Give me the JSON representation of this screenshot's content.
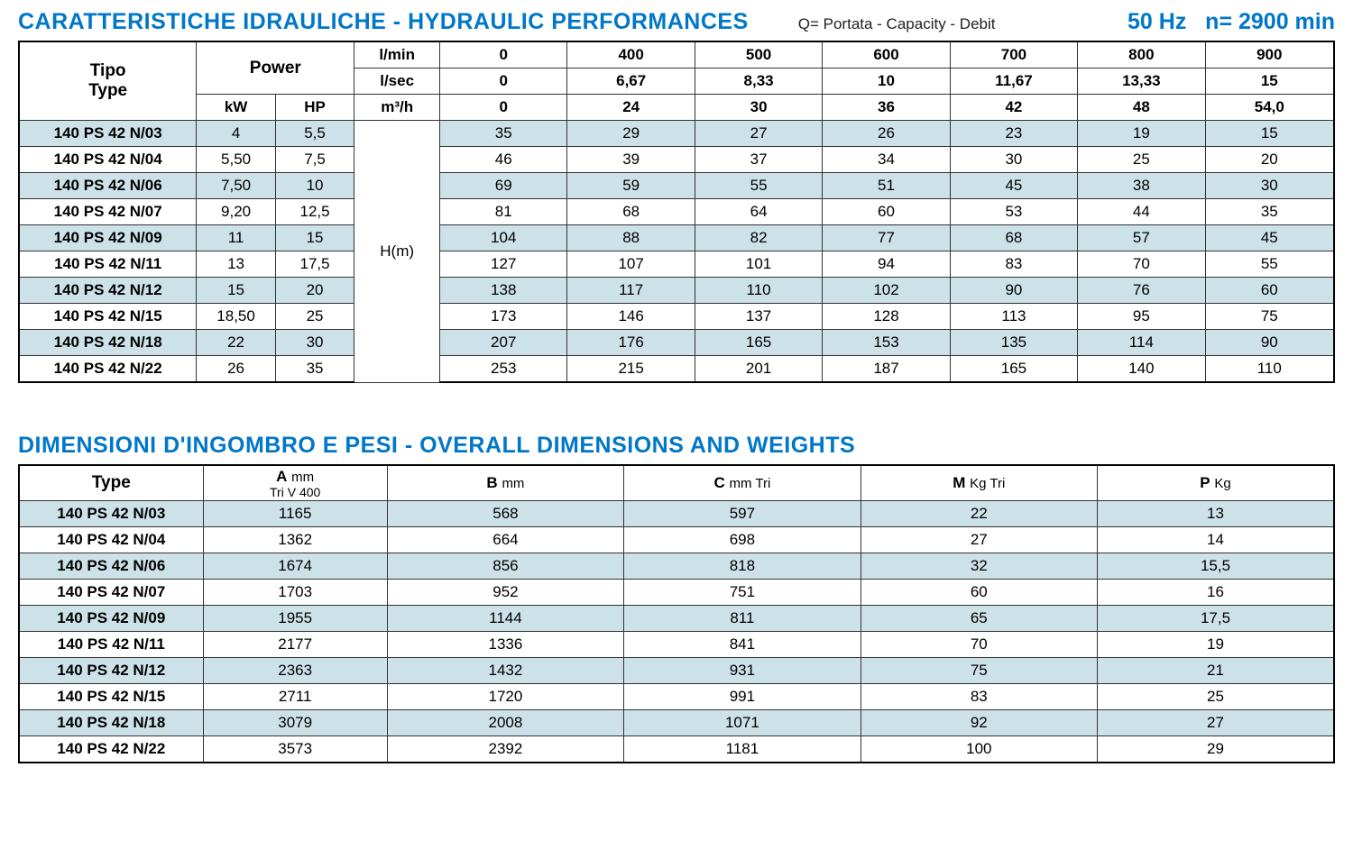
{
  "section1": {
    "title": "CARATTERISTICHE IDRAULICHE - HYDRAULIC PERFORMANCES",
    "q_note": "Q= Portata - Capacity - Debit",
    "freq": "50 Hz",
    "speed": "n= 2900 min",
    "headers": {
      "tipo1": "Tipo",
      "tipo2": "Type",
      "power": "Power",
      "kw": "kW",
      "hp": "HP",
      "lmin": "l/min",
      "lsec": "l/sec",
      "m3h": "m³/h",
      "hm": "H(m)"
    },
    "flow_lmin": [
      "0",
      "400",
      "500",
      "600",
      "700",
      "800",
      "900"
    ],
    "flow_lsec": [
      "0",
      "6,67",
      "8,33",
      "10",
      "11,67",
      "13,33",
      "15"
    ],
    "flow_m3h": [
      "0",
      "24",
      "30",
      "36",
      "42",
      "48",
      "54,0"
    ],
    "rows": [
      {
        "type": "140 PS 42 N/03",
        "kw": "4",
        "hp": "5,5",
        "h": [
          "35",
          "29",
          "27",
          "26",
          "23",
          "19",
          "15"
        ]
      },
      {
        "type": "140 PS 42 N/04",
        "kw": "5,50",
        "hp": "7,5",
        "h": [
          "46",
          "39",
          "37",
          "34",
          "30",
          "25",
          "20"
        ]
      },
      {
        "type": "140 PS 42 N/06",
        "kw": "7,50",
        "hp": "10",
        "h": [
          "69",
          "59",
          "55",
          "51",
          "45",
          "38",
          "30"
        ]
      },
      {
        "type": "140 PS 42 N/07",
        "kw": "9,20",
        "hp": "12,5",
        "h": [
          "81",
          "68",
          "64",
          "60",
          "53",
          "44",
          "35"
        ]
      },
      {
        "type": "140 PS 42 N/09",
        "kw": "11",
        "hp": "15",
        "h": [
          "104",
          "88",
          "82",
          "77",
          "68",
          "57",
          "45"
        ]
      },
      {
        "type": "140 PS 42 N/11",
        "kw": "13",
        "hp": "17,5",
        "h": [
          "127",
          "107",
          "101",
          "94",
          "83",
          "70",
          "55"
        ]
      },
      {
        "type": "140 PS 42 N/12",
        "kw": "15",
        "hp": "20",
        "h": [
          "138",
          "117",
          "110",
          "102",
          "90",
          "76",
          "60"
        ]
      },
      {
        "type": "140 PS 42 N/15",
        "kw": "18,50",
        "hp": "25",
        "h": [
          "173",
          "146",
          "137",
          "128",
          "113",
          "95",
          "75"
        ]
      },
      {
        "type": "140 PS 42 N/18",
        "kw": "22",
        "hp": "30",
        "h": [
          "207",
          "176",
          "165",
          "153",
          "135",
          "114",
          "90"
        ]
      },
      {
        "type": "140 PS 42 N/22",
        "kw": "26",
        "hp": "35",
        "h": [
          "253",
          "215",
          "201",
          "187",
          "165",
          "140",
          "110"
        ]
      }
    ],
    "col_widths_pct": [
      13.5,
      6,
      6,
      6.5,
      9.7,
      9.7,
      9.7,
      9.7,
      9.7,
      9.7,
      9.8
    ]
  },
  "section2": {
    "title": "DIMENSIONI D'INGOMBRO E PESI - OVERALL DIMENSIONS AND WEIGHTS",
    "headers": {
      "type": "Type",
      "a_main": "A",
      "a_unit": "mm",
      "a_sub": "Tri V 400",
      "b_main": "B",
      "b_unit": "mm",
      "c_main": "C",
      "c_unit": "mm Tri",
      "m_main": "M",
      "m_unit": "Kg Tri",
      "p_main": "P",
      "p_unit": "Kg"
    },
    "rows": [
      {
        "type": "140 PS 42 N/03",
        "a": "1165",
        "b": "568",
        "c": "597",
        "m": "22",
        "p": "13"
      },
      {
        "type": "140 PS 42 N/04",
        "a": "1362",
        "b": "664",
        "c": "698",
        "m": "27",
        "p": "14"
      },
      {
        "type": "140 PS 42 N/06",
        "a": "1674",
        "b": "856",
        "c": "818",
        "m": "32",
        "p": "15,5"
      },
      {
        "type": "140 PS 42 N/07",
        "a": "1703",
        "b": "952",
        "c": "751",
        "m": "60",
        "p": "16"
      },
      {
        "type": "140 PS 42 N/09",
        "a": "1955",
        "b": "1144",
        "c": "811",
        "m": "65",
        "p": "17,5"
      },
      {
        "type": "140 PS 42 N/11",
        "a": "2177",
        "b": "1336",
        "c": "841",
        "m": "70",
        "p": "19"
      },
      {
        "type": "140 PS 42 N/12",
        "a": "2363",
        "b": "1432",
        "c": "931",
        "m": "75",
        "p": "21"
      },
      {
        "type": "140 PS 42 N/15",
        "a": "2711",
        "b": "1720",
        "c": "991",
        "m": "83",
        "p": "25"
      },
      {
        "type": "140 PS 42 N/18",
        "a": "3079",
        "b": "2008",
        "c": "1071",
        "m": "92",
        "p": "27"
      },
      {
        "type": "140 PS 42 N/22",
        "a": "3573",
        "b": "2392",
        "c": "1181",
        "m": "100",
        "p": "29"
      }
    ],
    "col_widths_pct": [
      14,
      14,
      18,
      18,
      18,
      18
    ]
  },
  "colors": {
    "accent": "#0077c8",
    "row_alt": "#cde1e8",
    "border": "#333333"
  }
}
